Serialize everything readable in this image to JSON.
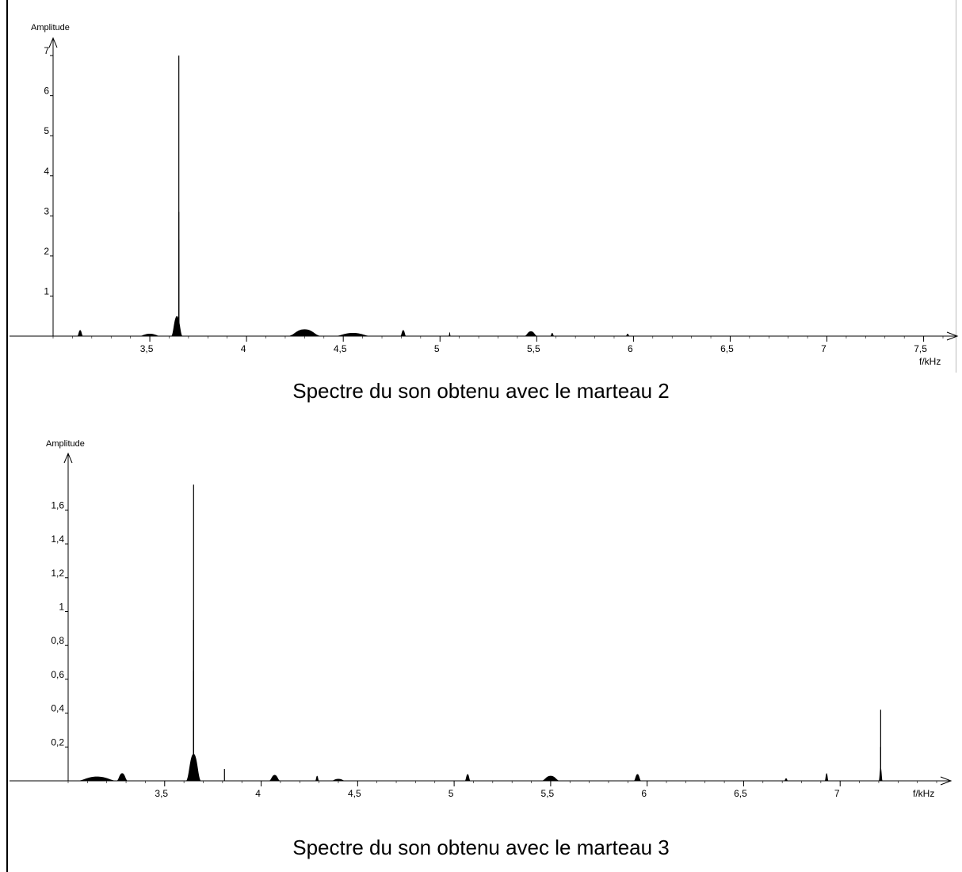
{
  "charts": [
    {
      "caption": "Spectre du son obtenu avec le marteau 2",
      "chart_data": {
        "type": "area",
        "ylabel": "Amplitude",
        "xlabel": "f/kHz",
        "xlim": [
          3.0,
          7.6
        ],
        "ylim": [
          0,
          7.2
        ],
        "x_ticks": [
          3.5,
          4,
          4.5,
          5,
          5.5,
          6,
          6.5,
          7,
          7.5
        ],
        "x_tick_labels": [
          "3,5",
          "4",
          "4,5",
          "5",
          "5,5",
          "6",
          "6,5",
          "7",
          "7,5"
        ],
        "y_ticks": [
          1,
          2,
          3,
          4,
          5,
          6,
          7
        ],
        "y_tick_labels": [
          "1",
          "2",
          "3",
          "4",
          "5",
          "6",
          "7"
        ],
        "peaks": [
          {
            "x": 3.65,
            "y": 7.0
          },
          {
            "x": 3.65,
            "y": 3.1
          },
          {
            "x": 3.65,
            "y": 2.4
          }
        ],
        "bumps": [
          {
            "x": 3.14,
            "width": 0.03,
            "y": 0.15
          },
          {
            "x": 3.5,
            "width": 0.12,
            "y": 0.06
          },
          {
            "x": 3.64,
            "width": 0.06,
            "y": 0.5
          },
          {
            "x": 4.3,
            "width": 0.18,
            "y": 0.17
          },
          {
            "x": 4.55,
            "width": 0.2,
            "y": 0.08
          },
          {
            "x": 4.81,
            "width": 0.03,
            "y": 0.15
          },
          {
            "x": 5.05,
            "width": 0.01,
            "y": 0.1
          },
          {
            "x": 5.47,
            "width": 0.07,
            "y": 0.12
          },
          {
            "x": 5.58,
            "width": 0.02,
            "y": 0.08
          },
          {
            "x": 5.97,
            "width": 0.02,
            "y": 0.06
          }
        ]
      }
    },
    {
      "caption": "Spectre du son obtenu avec le marteau 3",
      "chart_data": {
        "type": "area",
        "ylabel": "Amplitude",
        "xlabel": "f/kHz",
        "xlim": [
          3.0,
          7.5
        ],
        "ylim": [
          0,
          1.85
        ],
        "x_ticks": [
          3.5,
          4,
          4.5,
          5,
          5.5,
          6,
          6.5,
          7
        ],
        "x_tick_labels": [
          "3,5",
          "4",
          "4,5",
          "5",
          "5,5",
          "6",
          "6,5",
          "7"
        ],
        "y_ticks": [
          0.2,
          0.4,
          0.6,
          0.8,
          1,
          1.2,
          1.4,
          1.6
        ],
        "y_tick_labels": [
          "0,2",
          "0,4",
          "0,6",
          "0,8",
          "1",
          "1,2",
          "1,4",
          "1,6"
        ],
        "peaks": [
          {
            "x": 3.65,
            "y": 1.75
          },
          {
            "x": 3.65,
            "y": 0.95
          },
          {
            "x": 3.65,
            "y": 0.65
          },
          {
            "x": 7.21,
            "y": 0.42
          },
          {
            "x": 7.21,
            "y": 0.2
          },
          {
            "x": 3.81,
            "y": 0.07
          }
        ],
        "bumps": [
          {
            "x": 3.15,
            "width": 0.22,
            "y": 0.025
          },
          {
            "x": 3.28,
            "width": 0.06,
            "y": 0.045
          },
          {
            "x": 3.65,
            "width": 0.08,
            "y": 0.16
          },
          {
            "x": 4.07,
            "width": 0.06,
            "y": 0.035
          },
          {
            "x": 4.29,
            "width": 0.02,
            "y": 0.03
          },
          {
            "x": 4.4,
            "width": 0.08,
            "y": 0.012
          },
          {
            "x": 5.07,
            "width": 0.03,
            "y": 0.04
          },
          {
            "x": 5.5,
            "width": 0.1,
            "y": 0.03
          },
          {
            "x": 5.95,
            "width": 0.04,
            "y": 0.04
          },
          {
            "x": 6.72,
            "width": 0.02,
            "y": 0.015
          },
          {
            "x": 6.93,
            "width": 0.02,
            "y": 0.045
          },
          {
            "x": 7.21,
            "width": 0.02,
            "y": 0.08
          }
        ]
      }
    }
  ]
}
